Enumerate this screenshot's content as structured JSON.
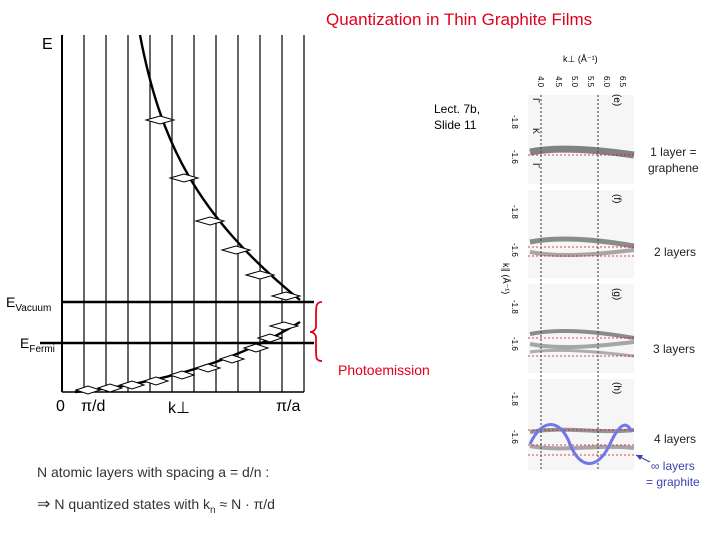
{
  "title": "Quantization in Thin Graphite Films",
  "energy_axis_label": "E",
  "reference": {
    "line1": "Lect. 7b,",
    "line2": "Slide 11"
  },
  "levels": {
    "vacuum": {
      "main": "E",
      "sub": "Vacuum"
    },
    "fermi": {
      "main": "E",
      "sub": "Fermi"
    }
  },
  "photoemission_label": "Photoemission",
  "k_axis": {
    "origin": "0",
    "pi_d": "π/d",
    "k_perp": "k⊥",
    "pi_a": "π/a"
  },
  "spectra_labels": {
    "one_layer": {
      "line1": "1 layer =",
      "line2": "graphene"
    },
    "two_layers": "2 layers",
    "three_layers": "3 layers",
    "four_layers": "4 layers",
    "infinite": {
      "line1": "∞ layers",
      "line2": "= graphite"
    }
  },
  "spectra_axis": {
    "header": "k⊥ (Å⁻¹)",
    "top_ticks": [
      "4.0",
      "4.5",
      "5.0",
      "5.5",
      "6.0",
      "6.5"
    ],
    "side_label": "k∥ (Å⁻¹)",
    "panels": [
      "(e)",
      "(f)",
      "(g)",
      "(h)"
    ],
    "tick": "-1.8",
    "tick2": "-1.6",
    "markers": [
      "Γ",
      "K",
      "Γ"
    ]
  },
  "notes": {
    "line1": "N  atomic layers with spacing  a = d/n :",
    "line2_arrow": "⇒",
    "line2_text": "N quantized states with  k",
    "line2_sub": "n",
    "line2_tail": " ≈ N · π/d"
  },
  "colors": {
    "accent": "#e0001a",
    "highlight": "#6f78e6"
  }
}
